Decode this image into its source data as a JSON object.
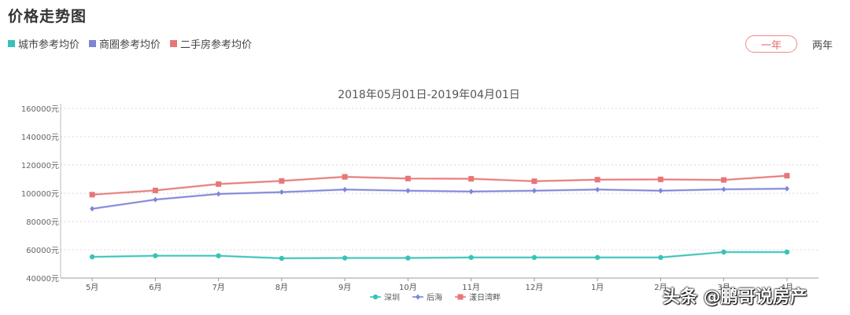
{
  "header": {
    "title": "价格走势图",
    "legend": [
      {
        "label": "城市参考均价",
        "color": "#37c3b8"
      },
      {
        "label": "商圈参考均价",
        "color": "#7f83d8"
      },
      {
        "label": "二手房参考均价",
        "color": "#e87676"
      }
    ],
    "range_buttons": {
      "active": "一年",
      "other": "两年"
    }
  },
  "chart_data": {
    "type": "line",
    "title": "2018年05月01日-2019年04月01日",
    "categories": [
      "5月",
      "6月",
      "7月",
      "8月",
      "9月",
      "10月",
      "11月",
      "12月",
      "1月",
      "2月",
      "3月",
      "4月"
    ],
    "y_tick_labels": [
      "40000元",
      "60000元",
      "80000元",
      "100000元",
      "120000元",
      "140000元",
      "160000元"
    ],
    "ylim": [
      40000,
      160000
    ],
    "grid": true,
    "legend_position": "bottom-center",
    "series": [
      {
        "name": "深圳",
        "color": "#37c3b8",
        "marker": "circle",
        "values": [
          55000,
          55800,
          55800,
          54000,
          54200,
          54200,
          54600,
          54600,
          54600,
          54600,
          58400,
          58400
        ]
      },
      {
        "name": "后海",
        "color": "#7f83d8",
        "marker": "diamond",
        "values": [
          89000,
          95500,
          99500,
          100800,
          102600,
          101800,
          101200,
          101800,
          102600,
          101800,
          102800,
          103200
        ]
      },
      {
        "name": "漾日湾畔",
        "color": "#e87676",
        "marker": "square",
        "values": [
          99000,
          102000,
          106500,
          108700,
          111600,
          110400,
          110200,
          108500,
          109600,
          109800,
          109400,
          112400
        ]
      }
    ]
  },
  "watermark": "头条 @鹏哥说房产"
}
